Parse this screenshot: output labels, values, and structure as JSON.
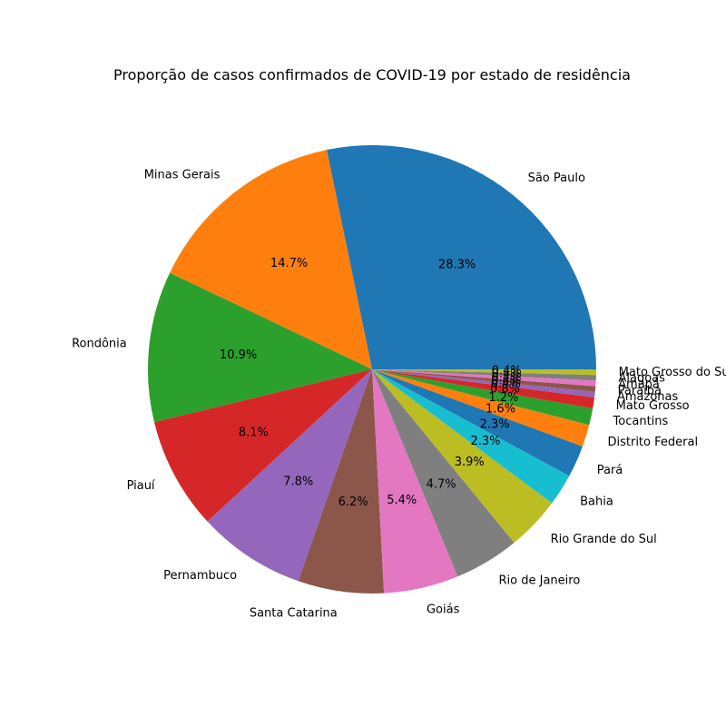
{
  "chart_data": {
    "type": "pie",
    "title": "Proporção de casos confirmados de COVID-19 por estado de residência",
    "slices": [
      {
        "label": "São Paulo",
        "value": 28.3,
        "pct_label": "28.3%",
        "color": "#1f77b4"
      },
      {
        "label": "Minas Gerais",
        "value": 14.7,
        "pct_label": "14.7%",
        "color": "#ff7f0e"
      },
      {
        "label": "Rondônia",
        "value": 10.9,
        "pct_label": "10.9%",
        "color": "#2ca02c"
      },
      {
        "label": "Piauí",
        "value": 8.1,
        "pct_label": "8.1%",
        "color": "#d62728"
      },
      {
        "label": "Pernambuco",
        "value": 7.8,
        "pct_label": "7.8%",
        "color": "#9467bd"
      },
      {
        "label": "Santa Catarina",
        "value": 6.2,
        "pct_label": "6.2%",
        "color": "#8c564b"
      },
      {
        "label": "Goiás",
        "value": 5.4,
        "pct_label": "5.4%",
        "color": "#e377c2"
      },
      {
        "label": "Rio de Janeiro",
        "value": 4.7,
        "pct_label": "4.7%",
        "color": "#7f7f7f"
      },
      {
        "label": "Rio Grande do Sul",
        "value": 3.9,
        "pct_label": "3.9%",
        "color": "#bcbd22"
      },
      {
        "label": "Bahia",
        "value": 2.3,
        "pct_label": "2.3%",
        "color": "#17becf"
      },
      {
        "label": "Pará",
        "value": 2.3,
        "pct_label": "2.3%",
        "color": "#1f77b4"
      },
      {
        "label": "Distrito Federal",
        "value": 1.6,
        "pct_label": "1.6%",
        "color": "#ff7f0e"
      },
      {
        "label": "Tocantins",
        "value": 1.2,
        "pct_label": "1.2%",
        "color": "#2ca02c"
      },
      {
        "label": "Mato Grosso",
        "value": 0.8,
        "pct_label": "0.8%",
        "color": "#d62728"
      },
      {
        "label": "Amazonas",
        "value": 0.4,
        "pct_label": "0.4%",
        "color": "#9467bd"
      },
      {
        "label": "Paraíba",
        "value": 0.4,
        "pct_label": "0.4%",
        "color": "#8c564b"
      },
      {
        "label": "Amapá",
        "value": 0.4,
        "pct_label": "0.4%",
        "color": "#e377c2"
      },
      {
        "label": "Alagoas",
        "value": 0.4,
        "pct_label": "0.4%",
        "color": "#7f7f7f"
      },
      {
        "label": "Mato Grosso do Sul",
        "value": 0.4,
        "pct_label": "0.4%",
        "color": "#bcbd22"
      }
    ],
    "start_angle_deg": 0,
    "direction": "counterclockwise"
  }
}
